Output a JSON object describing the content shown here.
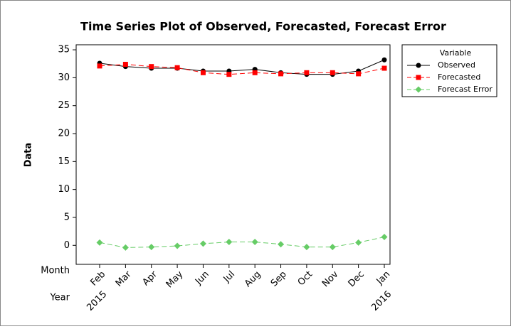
{
  "chart_data": {
    "type": "line",
    "title": "Time Series Plot of Observed, Forecasted, Forecast Error",
    "y_label": "Data",
    "x_row_labels": [
      "Month",
      "Year"
    ],
    "categories": [
      "Feb",
      "Mar",
      "Apr",
      "May",
      "Jun",
      "Jul",
      "Aug",
      "Sep",
      "Oct",
      "Nov",
      "Dec",
      "Jan"
    ],
    "years": [
      "2015",
      null,
      null,
      null,
      null,
      null,
      null,
      null,
      null,
      null,
      null,
      "2016"
    ],
    "legend_title": "Variable",
    "legend_position": "right",
    "series": [
      {
        "name": "Observed",
        "color": "#000000",
        "marker": "circle",
        "linestyle": "solid",
        "values": [
          32.6,
          32.0,
          31.7,
          31.7,
          31.2,
          31.2,
          31.5,
          30.9,
          30.6,
          30.6,
          31.2,
          33.2
        ]
      },
      {
        "name": "Forecasted",
        "color": "#ff0000",
        "marker": "square",
        "linestyle": "dashed",
        "values": [
          32.1,
          32.4,
          32.0,
          31.8,
          30.9,
          30.6,
          30.9,
          30.7,
          30.9,
          30.9,
          30.7,
          31.7
        ]
      },
      {
        "name": "Forecast Error",
        "color": "#66cc66",
        "marker": "diamond",
        "linestyle": "dashed",
        "values": [
          0.5,
          -0.4,
          -0.3,
          -0.1,
          0.3,
          0.6,
          0.6,
          0.2,
          -0.3,
          -0.3,
          0.5,
          1.5
        ]
      }
    ],
    "ylim": [
      -3.4,
      35.9
    ],
    "yticks": [
      0,
      5,
      10,
      15,
      20,
      25,
      30,
      35
    ],
    "grid": false
  }
}
